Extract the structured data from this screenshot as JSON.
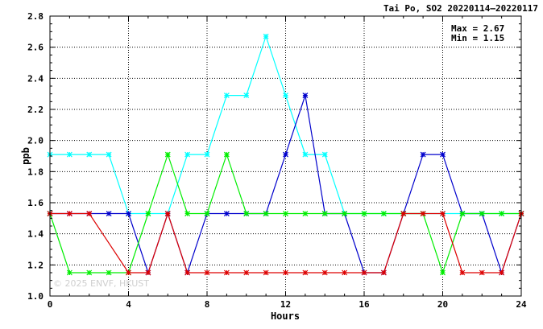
{
  "chart_data": {
    "type": "line",
    "title": "Tai Po, SO2 20220114–20220117",
    "xlabel": "Hours",
    "ylabel": "ppb",
    "xlim": [
      0,
      24
    ],
    "ylim": [
      1.0,
      2.8
    ],
    "xticks": [
      0,
      4,
      8,
      12,
      16,
      20,
      24
    ],
    "yticks": [
      1.0,
      1.2,
      1.4,
      1.6,
      1.8,
      2.0,
      2.2,
      2.4,
      2.6,
      2.8
    ],
    "grid": true,
    "stats": {
      "max_label": "Max = 2.67",
      "min_label": "Min = 1.15"
    },
    "watermark": "© 2025  ENVF, HKUST",
    "x": [
      0,
      1,
      2,
      3,
      4,
      5,
      6,
      7,
      8,
      9,
      10,
      11,
      12,
      13,
      14,
      15,
      16,
      17,
      18,
      19,
      20,
      21,
      22,
      23,
      24
    ],
    "series": [
      {
        "color": "#00ffff",
        "values": [
          1.91,
          1.91,
          1.91,
          1.91,
          1.53,
          1.53,
          1.53,
          1.91,
          1.91,
          2.29,
          2.29,
          2.67,
          2.29,
          1.91,
          1.91,
          1.53,
          1.53,
          1.53,
          1.53,
          1.53,
          1.53,
          1.53,
          1.53,
          1.53,
          1.53
        ]
      },
      {
        "color": "#0000cc",
        "values": [
          1.53,
          1.53,
          1.53,
          1.53,
          1.53,
          1.15,
          1.53,
          1.15,
          1.53,
          1.53,
          1.53,
          1.53,
          1.91,
          2.29,
          1.53,
          1.53,
          1.15,
          1.15,
          1.53,
          1.91,
          1.91,
          1.53,
          1.53,
          1.15,
          1.53
        ]
      },
      {
        "color": "#00ee00",
        "values": [
          1.53,
          1.15,
          1.15,
          1.15,
          1.15,
          1.53,
          1.91,
          1.53,
          1.53,
          1.91,
          1.53,
          1.53,
          1.53,
          1.53,
          1.53,
          1.53,
          1.53,
          1.53,
          1.53,
          1.53,
          1.15,
          1.53,
          1.53,
          1.53,
          1.53
        ]
      },
      {
        "color": "#dd0000",
        "values": [
          1.53,
          1.53,
          1.53,
          null,
          1.15,
          1.15,
          1.53,
          1.15,
          1.15,
          1.15,
          1.15,
          1.15,
          1.15,
          1.15,
          1.15,
          1.15,
          1.15,
          1.15,
          1.53,
          1.53,
          1.53,
          1.15,
          1.15,
          1.15,
          1.53
        ]
      }
    ]
  }
}
